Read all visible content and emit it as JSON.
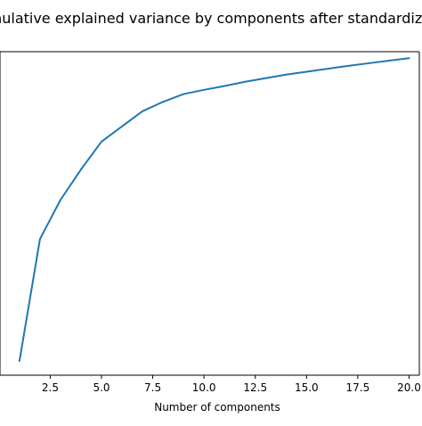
{
  "chart_data": {
    "type": "line",
    "title": "Cumulative explained variance by components after standardization",
    "xlabel": "Number of components",
    "ylabel": "",
    "xlim": [
      0.05,
      20.5
    ],
    "ylim": [
      0.0,
      1.0
    ],
    "xticks": [
      2.5,
      5.0,
      7.5,
      10.0,
      12.5,
      15.0,
      17.5,
      20.0
    ],
    "xtick_labels": [
      "2.5",
      "5.0",
      "7.5",
      "10.0",
      "12.5",
      "15.0",
      "17.5",
      "20.0"
    ],
    "grid": false,
    "series": [
      {
        "color": "#1f77b4",
        "x": [
          1,
          2,
          3,
          4,
          5,
          6,
          7,
          8,
          9,
          10,
          11,
          12,
          13,
          14,
          15,
          16,
          17,
          18,
          19,
          20
        ],
        "y": [
          0.044,
          0.421,
          0.542,
          0.636,
          0.722,
          0.769,
          0.816,
          0.845,
          0.869,
          0.882,
          0.894,
          0.907,
          0.918,
          0.929,
          0.938,
          0.947,
          0.956,
          0.964,
          0.972,
          0.98
        ]
      }
    ]
  }
}
